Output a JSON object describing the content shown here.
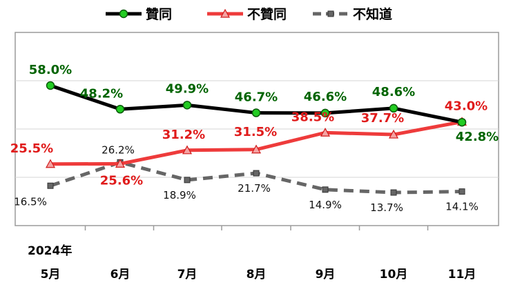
{
  "chart_data": {
    "type": "line",
    "categories": [
      "5月",
      "6月",
      "7月",
      "8月",
      "9月",
      "10月",
      "11月"
    ],
    "year_label": "2024年",
    "ylim": [
      0,
      80
    ],
    "grid": true,
    "legend_position": "top",
    "series": [
      {
        "name": "贊同",
        "values": [
          58.0,
          48.2,
          49.9,
          46.7,
          46.6,
          48.6,
          42.8
        ],
        "labels": [
          "58.0%",
          "48.2%",
          "49.9%",
          "46.7%",
          "46.6%",
          "48.6%",
          "42.8%"
        ],
        "line_color": "#000000",
        "marker_color": "#22cc22",
        "label_color": "#006400",
        "marker": "circle",
        "dash": false
      },
      {
        "name": "不贊同",
        "values": [
          25.5,
          25.6,
          31.2,
          31.5,
          38.5,
          37.7,
          43.0
        ],
        "labels": [
          "25.5%",
          "25.6%",
          "31.2%",
          "31.5%",
          "38.5%",
          "37.7%",
          "43.0%"
        ],
        "line_color": "#ee3b3b",
        "marker_color": "#f4a3a3",
        "label_color": "#e01b1b",
        "marker": "triangle",
        "dash": false
      },
      {
        "name": "不知道",
        "values": [
          16.5,
          26.2,
          18.9,
          21.7,
          14.9,
          13.7,
          14.1
        ],
        "labels": [
          "16.5%",
          "26.2%",
          "18.9%",
          "21.7%",
          "14.9%",
          "13.7%",
          "14.1%"
        ],
        "line_color": "#666666",
        "marker_color": "#666666",
        "label_color": "#111111",
        "marker": "square",
        "dash": true
      }
    ]
  }
}
